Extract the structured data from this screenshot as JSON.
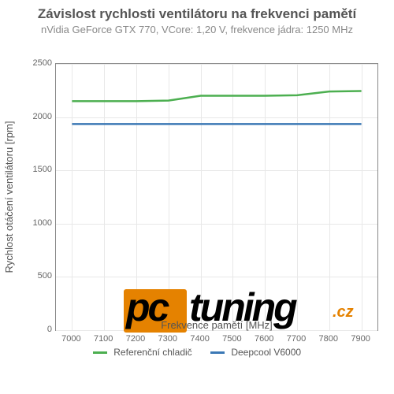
{
  "title": "Závislost rychlosti ventilátoru na frekvenci pamětí",
  "subtitle": "nVidia GeForce GTX 770, VCore: 1,20 V, frekvence jádra: 1250 MHz",
  "xlabel": "Frekvence pamětí [MHz]",
  "ylabel": "Rychlost otáčení ventilátoru [rpm]",
  "chart": {
    "type": "line",
    "background_color": "#ffffff",
    "grid_color": "#e8e8e8",
    "border_color": "#888888",
    "xlim": [
      6950,
      7950
    ],
    "ylim": [
      0,
      2500
    ],
    "xticks": [
      7000,
      7100,
      7200,
      7300,
      7400,
      7500,
      7600,
      7700,
      7800,
      7900
    ],
    "yticks": [
      0,
      500,
      1000,
      1500,
      2000,
      2500
    ],
    "tick_fontsize": 11,
    "label_fontsize": 13,
    "title_fontsize": 17,
    "line_width": 2.5,
    "series": [
      {
        "name": "Referenční chladič",
        "color": "#4caf50",
        "x": [
          7000,
          7100,
          7200,
          7300,
          7400,
          7500,
          7600,
          7700,
          7800,
          7900
        ],
        "y": [
          2150,
          2150,
          2150,
          2155,
          2200,
          2200,
          2200,
          2205,
          2240,
          2245
        ]
      },
      {
        "name": "Deepcool V6000",
        "color": "#3b78b5",
        "x": [
          7000,
          7100,
          7200,
          7300,
          7400,
          7500,
          7600,
          7700,
          7800,
          7900
        ],
        "y": [
          1935,
          1935,
          1935,
          1935,
          1935,
          1935,
          1935,
          1935,
          1935,
          1935
        ]
      }
    ]
  },
  "logo": {
    "pc": "pc",
    "tuning": "tuning",
    "cz": ".cz",
    "box_color": "#e58200",
    "text_color": "#000000"
  }
}
